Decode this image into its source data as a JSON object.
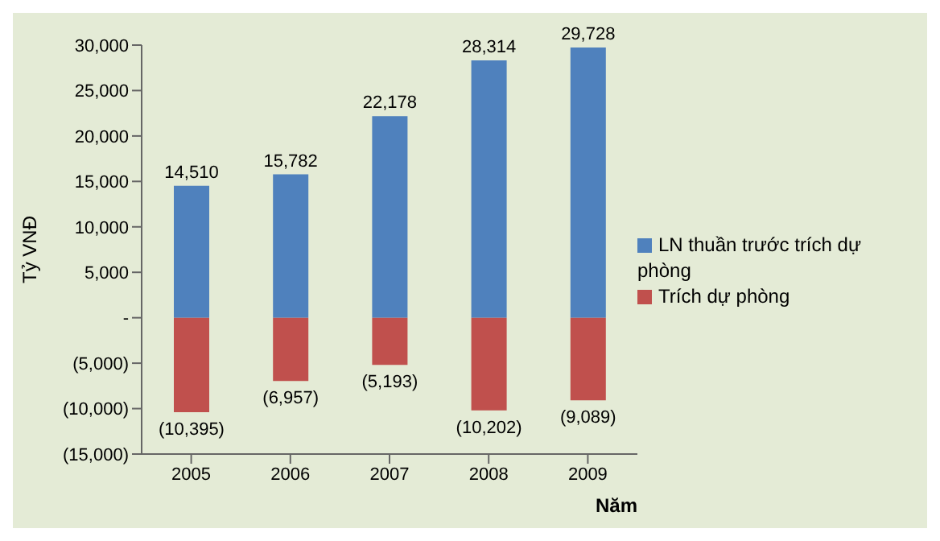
{
  "chart_data": {
    "type": "bar",
    "stacked": true,
    "ylabel": "Tỷ VNĐ",
    "xlabel": "Năm",
    "categories": [
      "2005",
      "2006",
      "2007",
      "2008",
      "2009"
    ],
    "series": [
      {
        "name": "LN thuần trước trích dự phòng",
        "color": "#4f81bd",
        "values": [
          14510,
          15782,
          22178,
          28314,
          29728
        ],
        "value_labels": [
          "14,510",
          "15,782",
          "22,178",
          "28,314",
          "29,728"
        ]
      },
      {
        "name": "Trích dự phòng",
        "color": "#c0504d",
        "values": [
          -10395,
          -6957,
          -5193,
          -10202,
          -9089
        ],
        "value_labels": [
          "(10,395)",
          "(6,957)",
          "(5,193)",
          "(10,202)",
          "(9,089)"
        ]
      }
    ],
    "ylim": [
      -15000,
      30000
    ],
    "yticks": [
      {
        "value": -15000,
        "label": "(15,000)"
      },
      {
        "value": -10000,
        "label": "(10,000)"
      },
      {
        "value": -5000,
        "label": "(5,000)"
      },
      {
        "value": 0,
        "label": "-"
      },
      {
        "value": 5000,
        "label": "5,000"
      },
      {
        "value": 10000,
        "label": "10,000"
      },
      {
        "value": 15000,
        "label": "15,000"
      },
      {
        "value": 20000,
        "label": "20,000"
      },
      {
        "value": 25000,
        "label": "25,000"
      },
      {
        "value": 30000,
        "label": "30,000"
      }
    ],
    "grid": false,
    "legend": "right"
  }
}
